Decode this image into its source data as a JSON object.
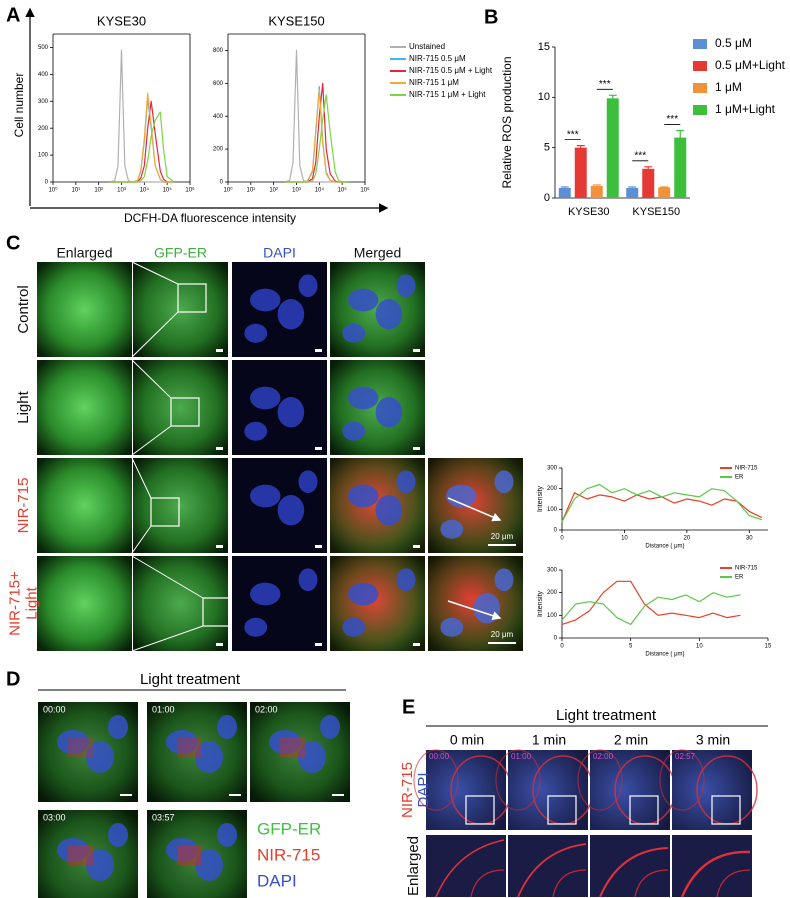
{
  "panels": {
    "letters": [
      "A",
      "B",
      "C",
      "D",
      "E"
    ]
  },
  "panel_a": {
    "ylabel": "Cell number",
    "xlabel": "DCFH-DA fluorescence intensity"
  },
  "chart_data": [
    {
      "type": "line",
      "title": "KYSE30",
      "xscale": "log",
      "xlim": [
        1,
        1000000
      ],
      "xticks": [
        {
          "value": 1,
          "label": "10⁰"
        },
        {
          "value": 10,
          "label": "10¹"
        },
        {
          "value": 100,
          "label": "10²"
        },
        {
          "value": 1000,
          "label": "10³"
        },
        {
          "value": 10000,
          "label": "10⁴"
        },
        {
          "value": 100000,
          "label": "10⁵"
        },
        {
          "value": 1000000,
          "label": "10⁶"
        }
      ],
      "ylim": [
        0,
        550
      ],
      "yticks": [
        0,
        100,
        200,
        300,
        400,
        500
      ],
      "legend": "right",
      "x": [
        300,
        500,
        700,
        1000,
        1400,
        2000,
        3000,
        5000,
        7000,
        10000,
        14000,
        20000,
        30000,
        50000,
        70000,
        100000,
        200000
      ],
      "series": [
        {
          "name": "Unstained",
          "color": "#b0b0b0",
          "values": [
            0,
            5,
            60,
            490,
            60,
            5,
            0,
            0,
            0,
            0,
            0,
            0,
            0,
            0,
            0,
            0,
            0
          ]
        },
        {
          "name": "NIR-715 0.5 μM",
          "color": "#3db8e8",
          "values": [
            0,
            0,
            0,
            0,
            0,
            0,
            0,
            5,
            40,
            150,
            310,
            200,
            60,
            10,
            0,
            0,
            0
          ]
        },
        {
          "name": "NIR-715 0.5 μM + Light",
          "color": "#e8253a",
          "values": [
            0,
            0,
            0,
            0,
            0,
            0,
            0,
            0,
            15,
            60,
            200,
            300,
            180,
            40,
            10,
            0,
            0
          ]
        },
        {
          "name": "NIR-715 1 μM",
          "color": "#f2a93b",
          "values": [
            0,
            0,
            0,
            0,
            0,
            0,
            0,
            5,
            45,
            160,
            330,
            210,
            60,
            10,
            0,
            0,
            0
          ]
        },
        {
          "name": "NIR-715 1 μM + Light",
          "color": "#7dd640",
          "values": [
            0,
            0,
            0,
            0,
            0,
            0,
            0,
            0,
            5,
            20,
            80,
            170,
            230,
            260,
            120,
            20,
            0
          ]
        }
      ]
    },
    {
      "type": "line",
      "title": "KYSE150",
      "xscale": "log",
      "xlim": [
        1,
        1000000
      ],
      "xticks": [
        {
          "value": 1,
          "label": "10⁰"
        },
        {
          "value": 10,
          "label": "10¹"
        },
        {
          "value": 100,
          "label": "10²"
        },
        {
          "value": 1000,
          "label": "10³"
        },
        {
          "value": 10000,
          "label": "10⁴"
        },
        {
          "value": 100000,
          "label": "10⁵"
        },
        {
          "value": 1000000,
          "label": "10⁶"
        }
      ],
      "ylim": [
        0,
        900
      ],
      "yticks": [
        0,
        200,
        400,
        600,
        800
      ],
      "x": [
        300,
        500,
        700,
        1000,
        1400,
        2000,
        3000,
        5000,
        7000,
        10000,
        14000,
        20000,
        30000,
        50000,
        70000,
        100000,
        200000
      ],
      "series": [
        {
          "color": "#b0b0b0",
          "values": [
            0,
            10,
            120,
            800,
            100,
            10,
            0,
            0,
            0,
            0,
            0,
            0,
            0,
            0,
            0,
            0,
            0
          ]
        },
        {
          "color": "#3db8e8",
          "values": [
            0,
            0,
            0,
            0,
            0,
            0,
            5,
            60,
            300,
            580,
            250,
            60,
            10,
            0,
            0,
            0,
            0
          ]
        },
        {
          "color": "#e8253a",
          "values": [
            0,
            0,
            0,
            0,
            0,
            0,
            0,
            20,
            120,
            400,
            600,
            200,
            50,
            5,
            0,
            0,
            0
          ]
        },
        {
          "color": "#f2a93b",
          "values": [
            0,
            0,
            0,
            0,
            0,
            0,
            5,
            70,
            320,
            560,
            240,
            50,
            10,
            0,
            0,
            0,
            0
          ]
        },
        {
          "color": "#7dd640",
          "values": [
            0,
            0,
            0,
            0,
            0,
            0,
            0,
            5,
            50,
            200,
            380,
            530,
            300,
            60,
            10,
            0,
            0
          ]
        }
      ]
    },
    {
      "type": "bar",
      "ylabel": "Relative ROS production",
      "categories": [
        "KYSE30",
        "KYSE150"
      ],
      "ylim": [
        0,
        15
      ],
      "yticks": [
        0,
        5,
        10,
        15
      ],
      "legend": "right",
      "series": [
        {
          "name": "0.5 μM",
          "color": "#5b8fd6",
          "values": [
            1.0,
            1.0
          ],
          "errors": [
            0.1,
            0.1
          ]
        },
        {
          "name": "0.5 μM+Light",
          "color": "#e53935",
          "values": [
            5.0,
            2.9
          ],
          "errors": [
            0.2,
            0.2
          ]
        },
        {
          "name": "1 μM",
          "color": "#f0923a",
          "values": [
            1.2,
            1.05
          ],
          "errors": [
            0.1,
            0.05
          ]
        },
        {
          "name": "1 μM+Light",
          "color": "#3dbf3d",
          "values": [
            9.9,
            6.0
          ],
          "errors": [
            0.3,
            0.7
          ]
        }
      ],
      "annotations": [
        "***",
        "***",
        "***",
        "***"
      ]
    },
    {
      "type": "line",
      "xlabel": "Distance ( μm)",
      "ylabel": "Intensity",
      "xlim": [
        0,
        33
      ],
      "xticks": [
        0,
        10,
        20,
        30
      ],
      "ylim": [
        0,
        300
      ],
      "yticks": [
        0,
        100,
        200,
        300
      ],
      "legend": "upper right",
      "x": [
        0,
        2,
        4,
        6,
        8,
        10,
        12,
        14,
        16,
        18,
        20,
        22,
        24,
        26,
        28,
        30,
        32
      ],
      "series": [
        {
          "name": "NIR-715",
          "color": "#e8402a",
          "values": [
            40,
            180,
            150,
            170,
            160,
            140,
            170,
            150,
            160,
            130,
            150,
            140,
            120,
            150,
            140,
            90,
            60
          ]
        },
        {
          "name": "ER",
          "color": "#5cc84a",
          "values": [
            40,
            150,
            200,
            220,
            180,
            200,
            170,
            190,
            160,
            180,
            170,
            160,
            200,
            190,
            140,
            70,
            50
          ]
        }
      ]
    },
    {
      "type": "line",
      "xlabel": "Distance ( μm)",
      "ylabel": "Intensity",
      "xlim": [
        0,
        15
      ],
      "xticks": [
        0,
        5,
        10,
        15
      ],
      "ylim": [
        0,
        300
      ],
      "yticks": [
        0,
        100,
        200,
        300
      ],
      "legend": "upper right",
      "x": [
        0,
        1,
        2,
        3,
        4,
        5,
        6,
        7,
        8,
        9,
        10,
        11,
        12,
        13
      ],
      "series": [
        {
          "name": "NIR-715",
          "color": "#e8402a",
          "values": [
            60,
            80,
            120,
            200,
            250,
            250,
            150,
            100,
            110,
            100,
            90,
            110,
            90,
            100
          ]
        },
        {
          "name": "ER",
          "color": "#5cc84a",
          "values": [
            80,
            150,
            160,
            150,
            90,
            60,
            140,
            180,
            170,
            190,
            160,
            200,
            180,
            190
          ]
        }
      ]
    }
  ],
  "panel_c": {
    "columns": [
      "Enlarged",
      "GFP-ER",
      "DAPI",
      "Merged"
    ],
    "rows": [
      {
        "lines": [
          "Control"
        ],
        "color": "#111111"
      },
      {
        "lines": [
          "Light"
        ],
        "color": "#111111"
      },
      {
        "lines": [
          "NIR-715"
        ],
        "color": "#e0402e"
      },
      {
        "lines": [
          "NIR-715+",
          "Light"
        ],
        "color": "#e0402e"
      }
    ],
    "scale_label": "20 μm"
  },
  "panel_d": {
    "title": "Light treatment",
    "timestamps": [
      "00:00",
      "01:00",
      "02:00",
      "03:00",
      "03:57"
    ],
    "legend": [
      {
        "label": "GFP-ER",
        "color": "#3fc23f"
      },
      {
        "label": "NIR-715",
        "color": "#e0402e"
      },
      {
        "label": "DAPI",
        "color": "#3550c8"
      }
    ]
  },
  "panel_e": {
    "title": "Light treatment",
    "times": [
      "0 min",
      "1 min",
      "2 min",
      "3 min"
    ],
    "timestamps": [
      "00:00",
      "01:00",
      "02:00",
      "02:57"
    ],
    "row_labels": [
      {
        "label": "NIR-715",
        "color": "#e0402e"
      },
      {
        "label": "DAPI",
        "color": "#3550c8"
      },
      {
        "label": "Enlarged",
        "color": "#111111"
      }
    ]
  }
}
